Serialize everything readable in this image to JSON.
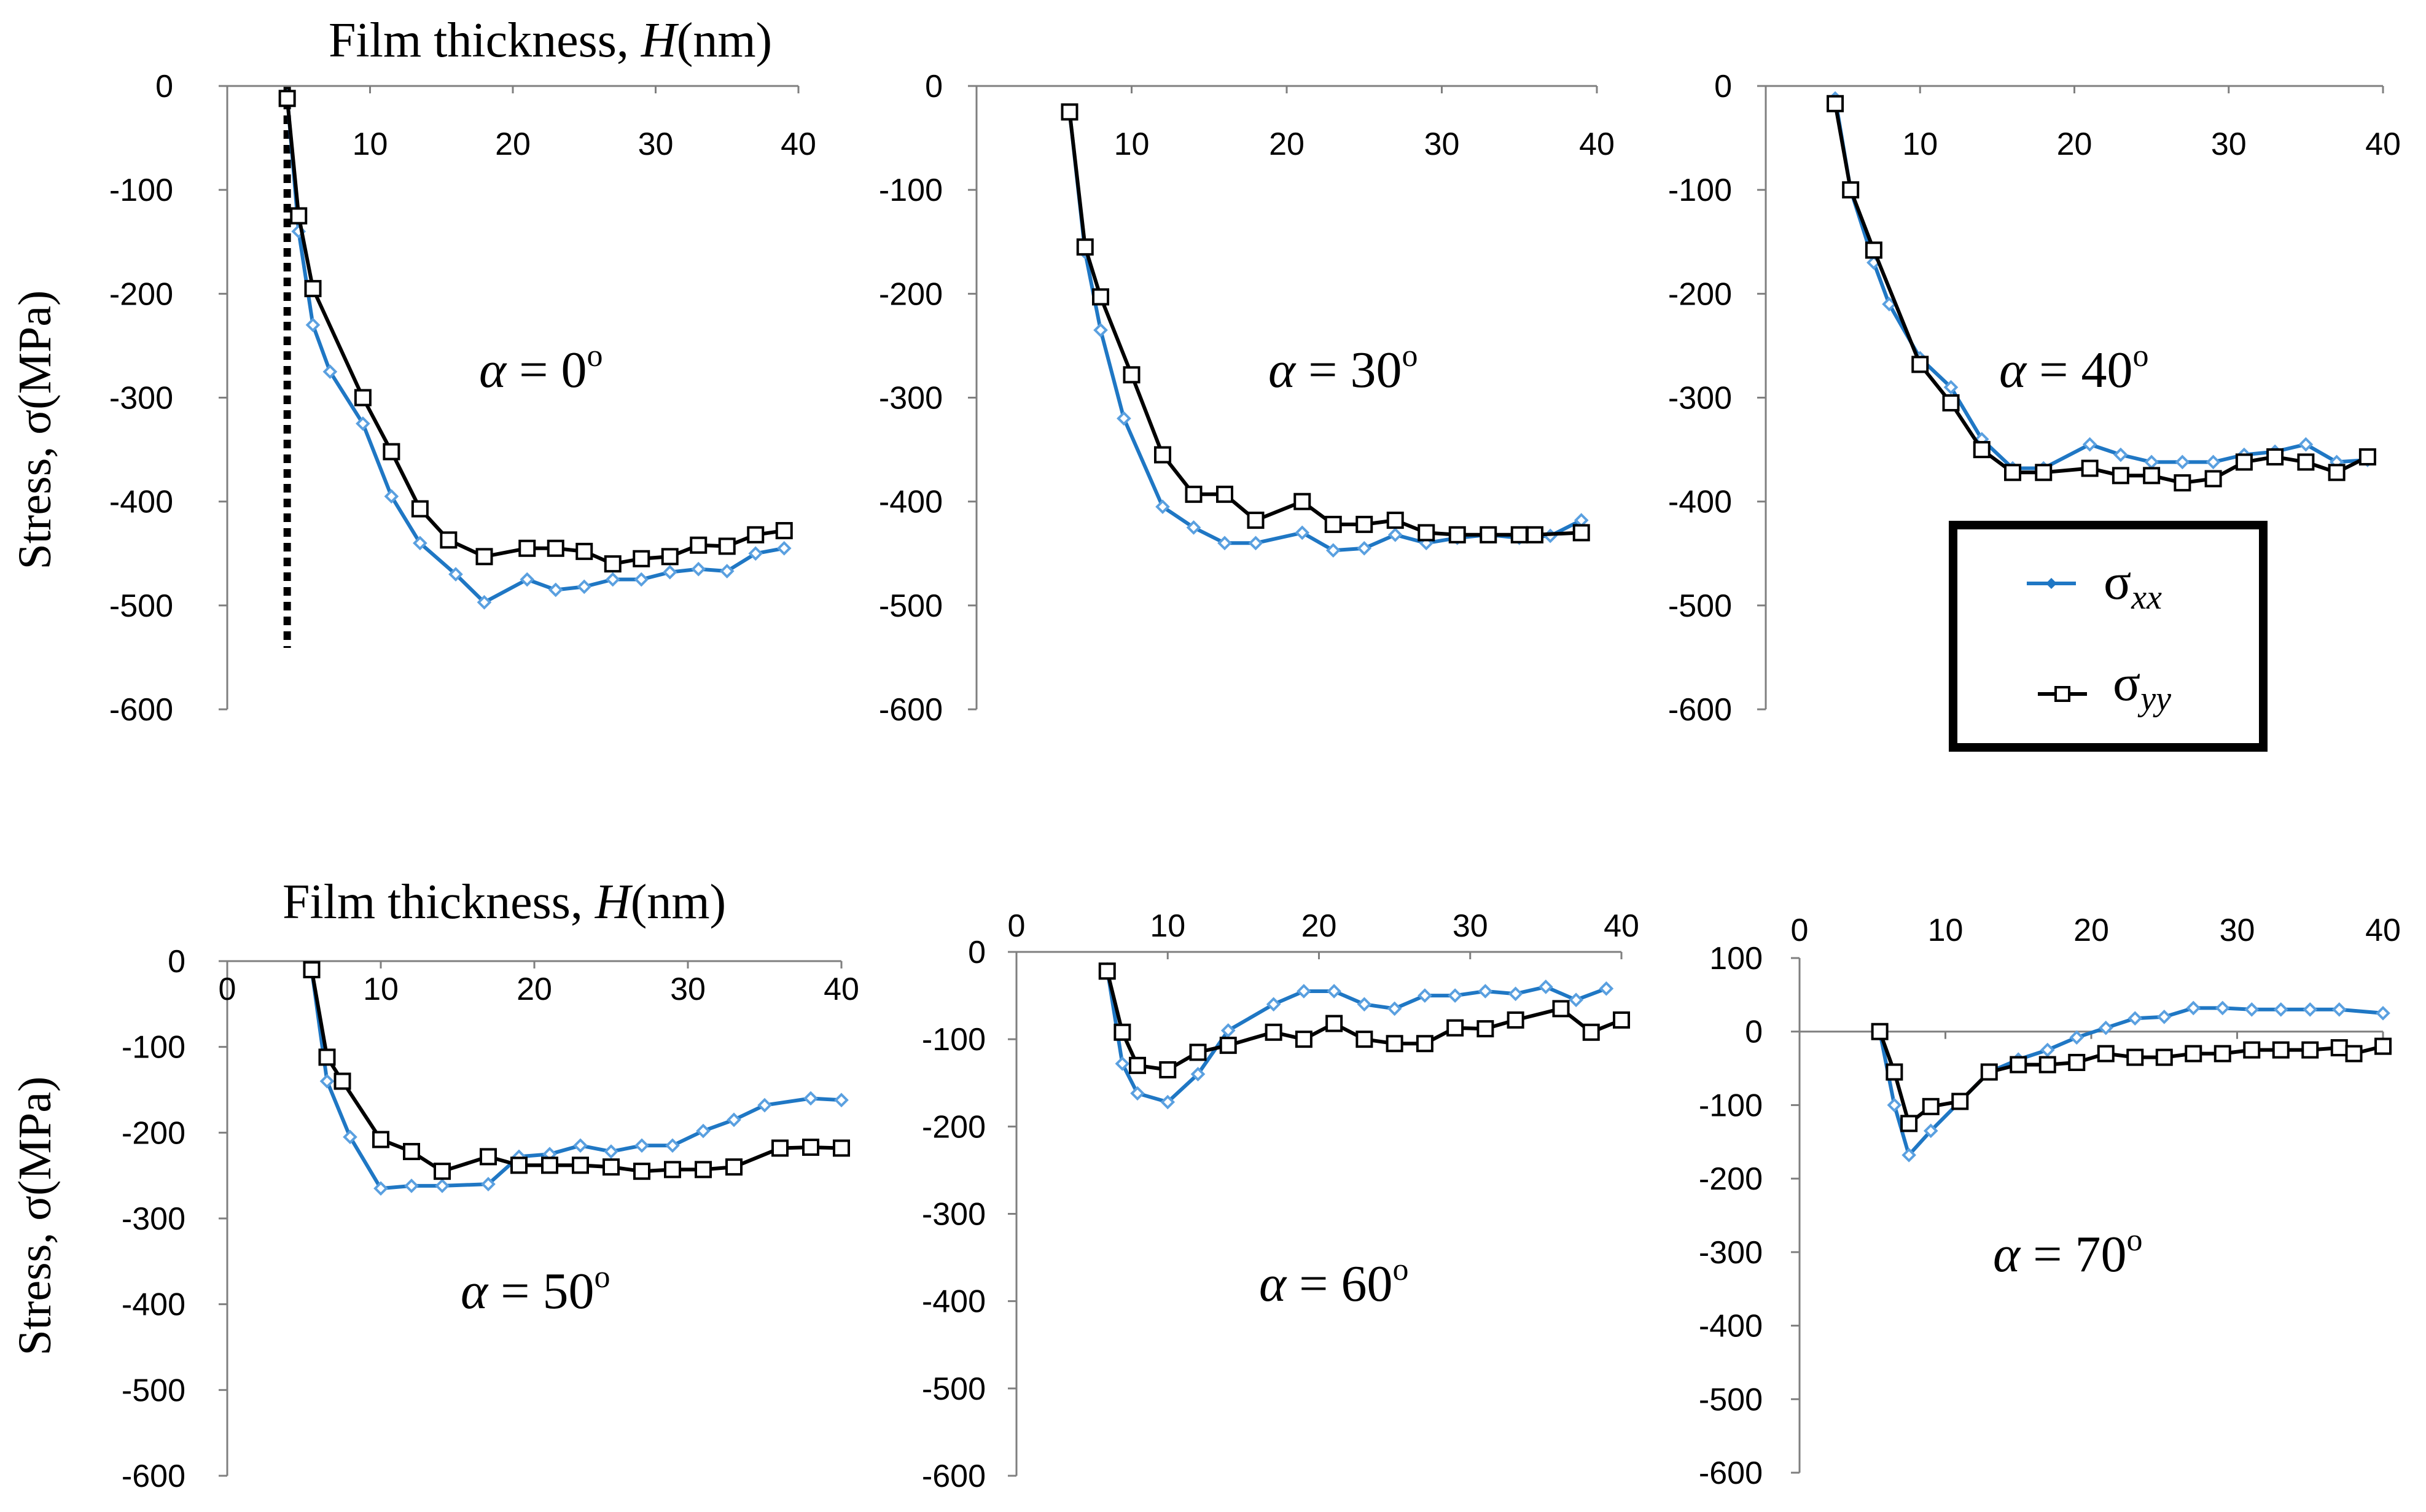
{
  "figure": {
    "ylabel": "Stress, σ(MPa)",
    "xlabel_prefix": "Film thickness, ",
    "xlabel_var": "H",
    "xlabel_unit": "(nm)",
    "alpha_symbol": "α",
    "alpha_eq": " = ",
    "degree_mark": "o",
    "colors": {
      "sigma_xx": "#1f77c4",
      "sigma_yy": "#000000",
      "axis": "#7f7f7f"
    },
    "legend": {
      "sigma_xx_label": "σ",
      "sigma_xx_sub": "xx",
      "sigma_yy_label": "σ",
      "sigma_yy_sub": "yy"
    }
  },
  "chart_data": [
    {
      "type": "line",
      "alpha": "0",
      "xlim": [
        0,
        40
      ],
      "ylim": [
        -600,
        0
      ],
      "xticks": [
        "10",
        "20",
        "30",
        "40"
      ],
      "yticks": [
        "0",
        "-100",
        "-200",
        "-300",
        "-400",
        "-500",
        "-600"
      ],
      "xlabel_shown": true,
      "ylabel_shown": true,
      "dashed_x": 4.2,
      "series": [
        {
          "name": "σxx",
          "x": [
            4.2,
            5,
            6,
            7.2,
            9.5,
            11.5,
            13.5,
            16,
            18,
            21,
            23,
            25,
            27,
            29,
            31,
            33,
            35,
            37,
            39
          ],
          "values": [
            -10,
            -140,
            -230,
            -275,
            -325,
            -395,
            -440,
            -470,
            -497,
            -475,
            -485,
            -482,
            -475,
            -475,
            -468,
            -465,
            -467,
            -450,
            -445
          ]
        },
        {
          "name": "σyy",
          "x": [
            4.2,
            5,
            6,
            9.5,
            11.5,
            13.5,
            15.5,
            18,
            21,
            23,
            25,
            27,
            29,
            31,
            33,
            35,
            37,
            39
          ],
          "values": [
            -12,
            -125,
            -195,
            -300,
            -352,
            -407,
            -437,
            -453,
            -445,
            -445,
            -448,
            -460,
            -455,
            -453,
            -442,
            -443,
            -432,
            -428
          ]
        }
      ]
    },
    {
      "type": "line",
      "alpha": "30",
      "xlim": [
        0,
        40
      ],
      "ylim": [
        -600,
        0
      ],
      "xticks": [
        "10",
        "20",
        "30",
        "40"
      ],
      "yticks": [
        "0",
        "-100",
        "-200",
        "-300",
        "-400",
        "-500",
        "-600"
      ],
      "xlabel_shown": false,
      "ylabel_shown": false,
      "series": [
        {
          "name": "σxx",
          "x": [
            6,
            7,
            8,
            9.5,
            12,
            14,
            16,
            18,
            21,
            23,
            25,
            27,
            29,
            31,
            33,
            35,
            37,
            39
          ],
          "values": [
            -25,
            -160,
            -235,
            -320,
            -405,
            -425,
            -440,
            -440,
            -430,
            -447,
            -445,
            -432,
            -440,
            -435,
            -432,
            -435,
            -433,
            -418
          ]
        },
        {
          "name": "σyy",
          "x": [
            6,
            7,
            8,
            10,
            12,
            14,
            16,
            18,
            21,
            23,
            25,
            27,
            29,
            31,
            33,
            35,
            36,
            39
          ],
          "values": [
            -25,
            -155,
            -203,
            -278,
            -355,
            -393,
            -393,
            -418,
            -400,
            -422,
            -422,
            -418,
            -430,
            -432,
            -432,
            -432,
            -432,
            -430
          ]
        }
      ]
    },
    {
      "type": "line",
      "alpha": "40",
      "xlim": [
        0,
        40
      ],
      "ylim": [
        -600,
        0
      ],
      "xticks": [
        "10",
        "20",
        "30",
        "40"
      ],
      "yticks": [
        "0",
        "-100",
        "-200",
        "-300",
        "-400",
        "-500",
        "-600"
      ],
      "xlabel_shown": false,
      "ylabel_shown": false,
      "series": [
        {
          "name": "σxx",
          "x": [
            4.5,
            5.5,
            7,
            8,
            10,
            12,
            14,
            16,
            18,
            21,
            23,
            25,
            27,
            29,
            31,
            33,
            35,
            37,
            39
          ],
          "values": [
            -12,
            -100,
            -170,
            -210,
            -262,
            -290,
            -340,
            -368,
            -368,
            -345,
            -355,
            -362,
            -362,
            -362,
            -355,
            -352,
            -345,
            -362,
            -360
          ]
        },
        {
          "name": "σyy",
          "x": [
            4.5,
            5.5,
            7,
            10,
            12,
            14,
            16,
            18,
            21,
            23,
            25,
            27,
            29,
            31,
            33,
            35,
            37,
            39
          ],
          "values": [
            -17,
            -100,
            -158,
            -268,
            -305,
            -350,
            -372,
            -372,
            -368,
            -375,
            -375,
            -382,
            -378,
            -362,
            -357,
            -362,
            -372,
            -357
          ]
        }
      ]
    },
    {
      "type": "line",
      "alpha": "50",
      "xlim": [
        0,
        40
      ],
      "ylim": [
        -600,
        0
      ],
      "xticks": [
        "0",
        "10",
        "20",
        "30",
        "40"
      ],
      "yticks": [
        "0",
        "-100",
        "-200",
        "-300",
        "-400",
        "-500",
        "-600"
      ],
      "xlabel_shown": true,
      "ylabel_shown": true,
      "series": [
        {
          "name": "σxx",
          "x": [
            5.5,
            6.5,
            8,
            10,
            12,
            14,
            17,
            19,
            21,
            23,
            25,
            27,
            29,
            31,
            33,
            35,
            38,
            40
          ],
          "values": [
            -10,
            -140,
            -205,
            -265,
            -262,
            -262,
            -260,
            -228,
            -225,
            -215,
            -222,
            -215,
            -215,
            -198,
            -185,
            -168,
            -160,
            -162
          ]
        },
        {
          "name": "σyy",
          "x": [
            5.5,
            6.5,
            7.5,
            10,
            12,
            14,
            17,
            19,
            21,
            23,
            25,
            27,
            29,
            31,
            33,
            36,
            38,
            40
          ],
          "values": [
            -10,
            -112,
            -140,
            -208,
            -222,
            -245,
            -228,
            -238,
            -238,
            -238,
            -240,
            -245,
            -243,
            -243,
            -240,
            -218,
            -217,
            -218
          ]
        }
      ]
    },
    {
      "type": "line",
      "alpha": "60",
      "xlim": [
        0,
        40
      ],
      "ylim": [
        -600,
        0
      ],
      "xticks": [
        "0",
        "10",
        "20",
        "30",
        "40"
      ],
      "yticks": [
        "0",
        "-100",
        "-200",
        "-300",
        "-400",
        "-500",
        "-600"
      ],
      "xlabel_shown": false,
      "ylabel_shown": false,
      "series": [
        {
          "name": "σxx",
          "x": [
            6,
            7,
            8,
            10,
            12,
            14,
            17,
            19,
            21,
            23,
            25,
            27,
            29,
            31,
            33,
            35,
            37,
            39
          ],
          "values": [
            -20,
            -128,
            -162,
            -172,
            -140,
            -90,
            -60,
            -45,
            -45,
            -60,
            -65,
            -50,
            -50,
            -45,
            -48,
            -40,
            -55,
            -42
          ]
        },
        {
          "name": "σyy",
          "x": [
            6,
            7,
            8,
            10,
            12,
            14,
            17,
            19,
            21,
            23,
            25,
            27,
            29,
            31,
            33,
            36,
            38,
            40
          ],
          "values": [
            -22,
            -92,
            -130,
            -135,
            -115,
            -107,
            -92,
            -100,
            -82,
            -100,
            -105,
            -105,
            -87,
            -88,
            -78,
            -65,
            -92,
            -78
          ]
        }
      ]
    },
    {
      "type": "line",
      "alpha": "70",
      "xlim": [
        0,
        40
      ],
      "ylim": [
        -600,
        100
      ],
      "xticks": [
        "0",
        "10",
        "20",
        "30",
        "40"
      ],
      "yticks": [
        "100",
        "0",
        "-100",
        "-200",
        "-300",
        "-400",
        "-500",
        "-600"
      ],
      "xlabel_shown": false,
      "ylabel_shown": false,
      "series": [
        {
          "name": "σxx",
          "x": [
            5.5,
            6.5,
            7.5,
            9,
            11,
            13,
            15,
            17,
            19,
            21,
            23,
            25,
            27,
            29,
            31,
            33,
            35,
            37,
            40
          ],
          "values": [
            0,
            -100,
            -168,
            -135,
            -95,
            -55,
            -38,
            -25,
            -8,
            5,
            18,
            20,
            32,
            32,
            30,
            30,
            30,
            30,
            25
          ]
        },
        {
          "name": "σyy",
          "x": [
            5.5,
            6.5,
            7.5,
            9,
            11,
            13,
            15,
            17,
            19,
            21,
            23,
            25,
            27,
            29,
            31,
            33,
            35,
            37,
            38,
            40
          ],
          "values": [
            0,
            -55,
            -125,
            -102,
            -95,
            -55,
            -45,
            -45,
            -42,
            -30,
            -35,
            -35,
            -30,
            -30,
            -25,
            -25,
            -25,
            -22,
            -30,
            -20
          ]
        }
      ]
    }
  ]
}
